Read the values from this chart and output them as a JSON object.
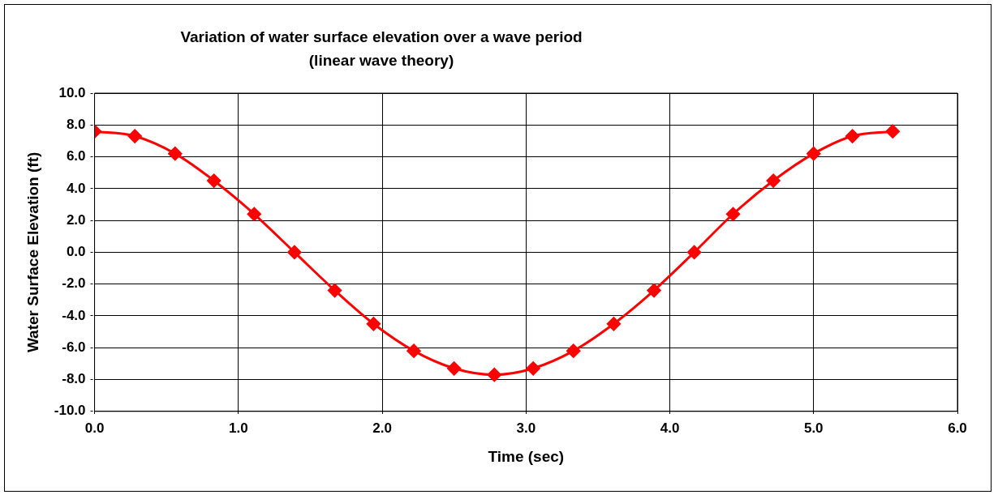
{
  "chart_data": {
    "type": "line",
    "title": "Variation of water surface elevation over a wave period",
    "subtitle": "(linear wave theory)",
    "xlabel": "Time (sec)",
    "ylabel": "Water Surface Elevation (ft)",
    "x": [
      0,
      0.28,
      0.56,
      0.83,
      1.11,
      1.39,
      1.67,
      1.94,
      2.22,
      2.5,
      2.78,
      3.05,
      3.33,
      3.61,
      3.89,
      4.17,
      4.44,
      4.72,
      5.0,
      5.27,
      5.55
    ],
    "series": [
      {
        "color": "#ff0000",
        "values": [
          7.6,
          7.3,
          6.2,
          4.5,
          2.4,
          0.0,
          -2.4,
          -4.5,
          -6.2,
          -7.3,
          -7.7,
          -7.3,
          -6.2,
          -4.5,
          -2.4,
          0.0,
          2.4,
          4.5,
          6.2,
          7.3,
          7.6
        ]
      }
    ],
    "xlim": [
      0,
      6
    ],
    "xticks": [
      {
        "value": 0,
        "label": "0.0"
      },
      {
        "value": 1,
        "label": "1.0"
      },
      {
        "value": 2,
        "label": "2.0"
      },
      {
        "value": 3,
        "label": "3.0"
      },
      {
        "value": 4,
        "label": "4.0"
      },
      {
        "value": 5,
        "label": "5.0"
      },
      {
        "value": 6,
        "label": "6.0"
      }
    ],
    "ylim": [
      -10,
      10
    ],
    "yticks": [
      {
        "value": -10,
        "label": "-10.0"
      },
      {
        "value": -8,
        "label": "-8.0"
      },
      {
        "value": -6,
        "label": "-6.0"
      },
      {
        "value": -4,
        "label": "-4.0"
      },
      {
        "value": -2,
        "label": "-2.0"
      },
      {
        "value": 0,
        "label": "0.0"
      },
      {
        "value": 2,
        "label": "2.0"
      },
      {
        "value": 4,
        "label": "4.0"
      },
      {
        "value": 6,
        "label": "6.0"
      },
      {
        "value": 8,
        "label": "8.0"
      },
      {
        "value": 10,
        "label": "10.0"
      }
    ],
    "grid": true,
    "legend": false,
    "marker": "diamond",
    "line_style": "solid"
  }
}
